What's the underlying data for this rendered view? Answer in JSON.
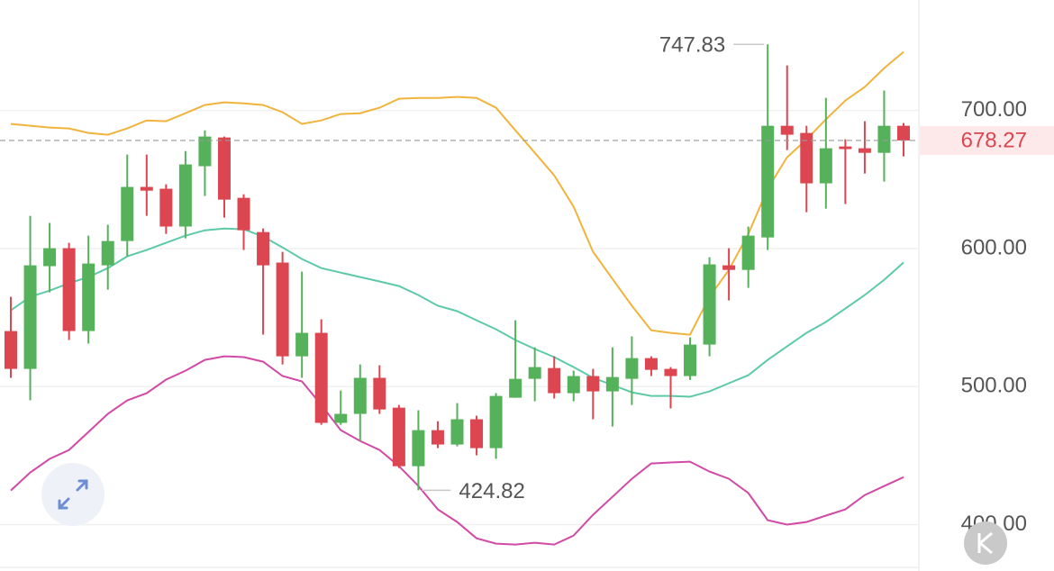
{
  "chart_data": {
    "type": "candlestick",
    "x": [
      null,
      null,
      null,
      null,
      null,
      null,
      null,
      null,
      null,
      null,
      null,
      null,
      null,
      null,
      null,
      null,
      null,
      null,
      null,
      null,
      null,
      null,
      null,
      null,
      null,
      null,
      null,
      null,
      null,
      null,
      null,
      null,
      null,
      null,
      null,
      null,
      null,
      null,
      null,
      null,
      null,
      null,
      null,
      null,
      null,
      null,
      null
    ],
    "open": [
      540.2,
      512.8,
      587.2,
      600.2,
      540.2,
      587.8,
      605.4,
      644.6,
      643.3,
      615.9,
      659.6,
      680.4,
      636.7,
      611.9,
      589.8,
      521.9,
      538.9,
      473.7,
      480.2,
      506.3,
      484.7,
      442.3,
      468.4,
      458.0,
      476.3,
      455.4,
      491.9,
      505.6,
      513.4,
      495.2,
      507.6,
      496.5,
      505.6,
      520.6,
      512.8,
      507.6,
      530.4,
      587.8,
      584.5,
      608.0,
      688.9,
      683.7,
      647.2,
      673.9,
      672.6,
      669.3,
      688.9
    ],
    "high": [
      565.0,
      623.7,
      618.5,
      604.1,
      609.3,
      617.2,
      668.0,
      668.0,
      646.5,
      670.6,
      685.6,
      681.1,
      639.3,
      614.5,
      597.6,
      583.2,
      548.7,
      497.1,
      516.0,
      515.4,
      486.7,
      482.8,
      474.9,
      488.0,
      478.9,
      495.2,
      548.0,
      528.4,
      521.9,
      511.5,
      512.8,
      528.4,
      536.3,
      521.9,
      514.1,
      535.6,
      593.7,
      600.2,
      615.9,
      747.83,
      732.6,
      688.9,
      709.1,
      679.1,
      692.2,
      714.4,
      690.9
    ],
    "low": [
      506.3,
      490.0,
      568.2,
      533.7,
      531.1,
      570.2,
      594.3,
      623.7,
      610.6,
      607.4,
      638.0,
      622.4,
      598.9,
      537.6,
      516.0,
      506.3,
      472.3,
      472.3,
      460.6,
      480.2,
      441.0,
      424.82,
      455.4,
      456.7,
      450.2,
      447.6,
      491.9,
      489.3,
      491.3,
      489.3,
      476.3,
      471.0,
      486.7,
      507.6,
      484.1,
      504.8,
      521.9,
      562.4,
      571.5,
      598.9,
      671.3,
      626.3,
      628.9,
      632.2,
      654.3,
      648.5,
      666.7
    ],
    "close": [
      512.8,
      587.8,
      600.2,
      540.2,
      589.1,
      605.4,
      644.6,
      641.9,
      615.9,
      660.9,
      681.1,
      635.4,
      613.2,
      587.8,
      521.9,
      538.9,
      473.7,
      480.2,
      506.3,
      483.4,
      442.3,
      468.4,
      458.0,
      476.3,
      455.4,
      493.2,
      505.6,
      514.1,
      495.2,
      507.6,
      496.5,
      506.9,
      520.6,
      512.1,
      507.6,
      530.4,
      588.5,
      584.5,
      609.3,
      688.9,
      682.4,
      647.2,
      672.6,
      672.0,
      669.3,
      688.9,
      678.27
    ],
    "up_color": "#55b15a",
    "down_color": "#dc4650",
    "overlays": [
      {
        "color": "#f0b43c",
        "values": [
          690.2,
          688.9,
          687.6,
          687.0,
          683.7,
          682.4,
          687.0,
          692.8,
          692.2,
          698.0,
          703.9,
          705.9,
          705.2,
          703.9,
          698.7,
          690.2,
          692.8,
          697.4,
          698.0,
          702.0,
          708.5,
          709.1,
          709.1,
          709.8,
          709.1,
          702.0,
          685.6,
          669.3,
          653.0,
          630.2,
          597.6,
          578.0,
          558.5,
          540.8,
          538.9,
          537.6,
          565.0,
          584.5,
          610.6,
          643.3,
          666.1,
          679.1,
          693.5,
          707.2,
          717.0,
          730.7,
          742.4
        ]
      },
      {
        "color": "#5ccaa8",
        "values": [
          555.2,
          565.0,
          569.5,
          574.8,
          579.3,
          585.8,
          594.3,
          598.9,
          604.1,
          609.3,
          613.2,
          614.5,
          613.9,
          608.7,
          600.8,
          592.4,
          585.8,
          582.5,
          579.3,
          576.1,
          572.8,
          566.3,
          558.5,
          554.6,
          548.0,
          541.5,
          533.7,
          527.2,
          521.3,
          514.1,
          506.3,
          501.1,
          495.8,
          493.2,
          493.2,
          492.6,
          496.5,
          502.4,
          508.2,
          519.3,
          529.1,
          538.9,
          546.8,
          556.5,
          566.3,
          577.4,
          589.8
        ]
      },
      {
        "color": "#d14aa6",
        "values": [
          424.7,
          437.7,
          447.6,
          454.1,
          467.1,
          480.2,
          490.0,
          495.2,
          505.0,
          511.5,
          519.3,
          521.9,
          521.3,
          518.0,
          507.6,
          503.7,
          486.7,
          468.4,
          460.6,
          454.1,
          442.3,
          428.0,
          411.0,
          401.9,
          390.1,
          386.2,
          385.6,
          386.9,
          385.6,
          392.1,
          407.1,
          420.1,
          433.2,
          444.3,
          445.0,
          445.6,
          438.4,
          433.2,
          422.8,
          403.2,
          400.0,
          401.9,
          406.5,
          411.0,
          421.4,
          427.9,
          434.4
        ]
      }
    ],
    "ylim": [
      369,
      780
    ],
    "yticks": [
      {
        "value": 400,
        "label": "400.00"
      },
      {
        "value": 500,
        "label": "500.00"
      },
      {
        "value": 600,
        "label": "600.00"
      },
      {
        "value": 700,
        "label": "700.00"
      }
    ],
    "grid": true
  }
}
